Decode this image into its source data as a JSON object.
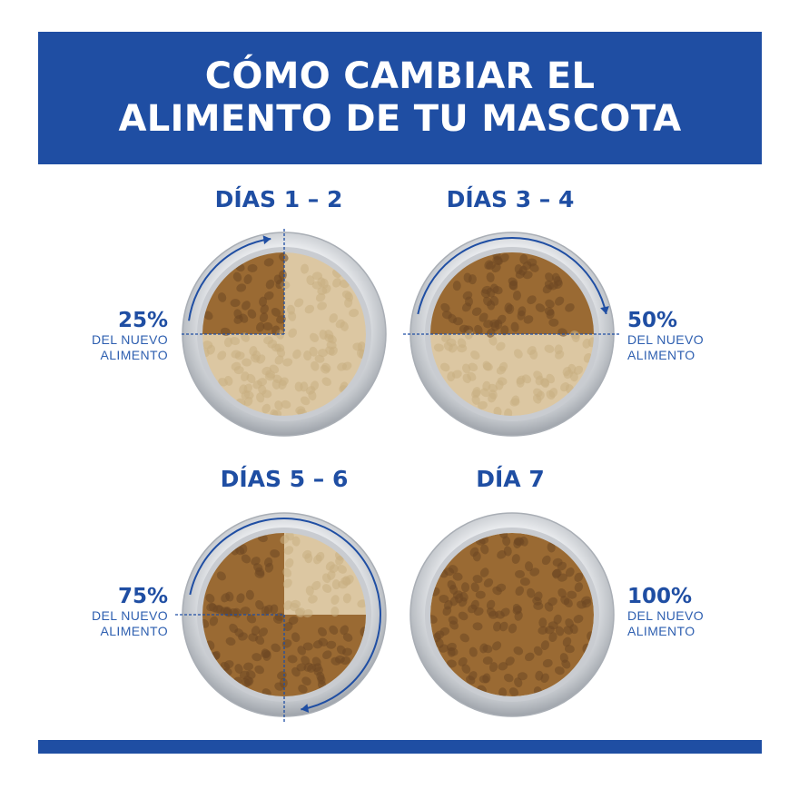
{
  "header": {
    "title_line1": "CÓMO CAMBIAR EL",
    "title_line2": "ALIMENTO DE TU MASCOTA"
  },
  "stages": [
    {
      "label": "DÍAS 1 – 2",
      "percent": "25%",
      "caption_line1": "DEL NUEVO",
      "caption_line2": "ALIMENTO",
      "new_food_fraction": 0.25
    },
    {
      "label": "DÍAS 3 – 4",
      "percent": "50%",
      "caption_line1": "DEL NUEVO",
      "caption_line2": "ALIMENTO",
      "new_food_fraction": 0.5
    },
    {
      "label": "DÍAS 5 – 6",
      "percent": "75%",
      "caption_line1": "DEL NUEVO",
      "caption_line2": "ALIMENTO",
      "new_food_fraction": 0.75
    },
    {
      "label": "DÍA 7",
      "percent": "100%",
      "caption_line1": "DEL NUEVO",
      "caption_line2": "ALIMENTO",
      "new_food_fraction": 1.0
    }
  ],
  "colors": {
    "brand_blue": "#1f4ea3",
    "new_food": "#9a6a33",
    "old_food": "#dcc7a2",
    "bowl_rim": "#bfc3c8"
  }
}
